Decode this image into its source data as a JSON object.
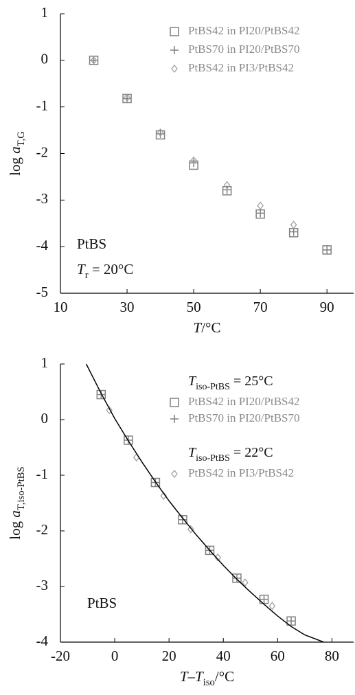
{
  "chart_data": [
    {
      "type": "scatter",
      "xlim": [
        10,
        98
      ],
      "xticks": [
        10,
        30,
        50,
        70,
        90
      ],
      "ylim": [
        -5,
        1
      ],
      "yticks": [
        1,
        0,
        -1,
        -2,
        -3,
        -4,
        -5
      ],
      "xlabel": [
        {
          "text": "T",
          "style": "italic"
        },
        {
          "text": "/°C",
          "style": "normal"
        }
      ],
      "ylabel": [
        {
          "text": "log ",
          "style": "normal"
        },
        {
          "text": "a",
          "style": "italic"
        },
        {
          "text": "T,G",
          "style": "sub"
        }
      ],
      "annotations": [
        [
          {
            "text": "PtBS",
            "style": "normal"
          }
        ],
        [
          {
            "text": "T",
            "style": "italic"
          },
          {
            "text": "r",
            "style": "sub"
          },
          {
            "text": " = 20°C",
            "style": "normal"
          }
        ]
      ],
      "series": [
        {
          "name": "PtBS42 in PI20/PtBS42",
          "marker": "square",
          "color": "#808080",
          "x": [
            20,
            30,
            40,
            50,
            60,
            70,
            80,
            90
          ],
          "values": [
            0,
            -0.82,
            -1.6,
            -2.25,
            -2.8,
            -3.3,
            -3.7,
            -4.07
          ]
        },
        {
          "name": "PtBS70 in PI20/PtBS70",
          "marker": "plus",
          "color": "#808080",
          "x": [
            20,
            30,
            40,
            50,
            60,
            70,
            80,
            90
          ],
          "values": [
            0,
            -0.82,
            -1.58,
            -2.2,
            -2.78,
            -3.28,
            -3.68,
            -4.07
          ]
        },
        {
          "name": "PtBS42 in PI3/PtBS42",
          "marker": "diamond",
          "color": "#a0a0a0",
          "x": [
            20,
            30,
            40,
            50,
            60,
            70,
            80
          ],
          "values": [
            0,
            -0.8,
            -1.55,
            -2.15,
            -2.68,
            -3.12,
            -3.53
          ]
        }
      ]
    },
    {
      "type": "scatter",
      "xlim": [
        -20,
        88
      ],
      "xticks": [
        -20,
        0,
        20,
        40,
        60,
        80
      ],
      "ylim": [
        -4,
        1
      ],
      "yticks": [
        1,
        0,
        -1,
        -2,
        -3,
        -4
      ],
      "xlabel": [
        {
          "text": "T",
          "style": "italic"
        },
        {
          "text": "–",
          "style": "normal"
        },
        {
          "text": "T",
          "style": "italic"
        },
        {
          "text": "iso",
          "style": "sub"
        },
        {
          "text": "/°C",
          "style": "normal"
        }
      ],
      "ylabel": [
        {
          "text": "log ",
          "style": "normal"
        },
        {
          "text": "a",
          "style": "italic"
        },
        {
          "text": "T,iso-PtBS",
          "style": "sub"
        }
      ],
      "annotations": [
        [
          {
            "text": "PtBS",
            "style": "normal"
          }
        ]
      ],
      "series": [
        {
          "name": "PtBS42 in PI20/PtBS42",
          "marker": "square",
          "color": "#808080",
          "legend_heading": [
            {
              "text": "T",
              "style": "italic"
            },
            {
              "text": "iso-PtBS",
              "style": "sub"
            },
            {
              "text": " = 25°C",
              "style": "normal"
            }
          ],
          "x": [
            -5,
            5,
            15,
            25,
            35,
            45,
            55,
            65
          ],
          "values": [
            0.45,
            -0.37,
            -1.13,
            -1.8,
            -2.35,
            -2.85,
            -3.23,
            -3.62
          ]
        },
        {
          "name": "PtBS70 in PI20/PtBS70",
          "marker": "plus",
          "color": "#808080",
          "x": [
            -5,
            5,
            15,
            25,
            35,
            45,
            55,
            65
          ],
          "values": [
            0.45,
            -0.37,
            -1.13,
            -1.8,
            -2.35,
            -2.85,
            -3.23,
            -3.62
          ]
        },
        {
          "name": "PtBS42 in PI3/PtBS42",
          "marker": "diamond",
          "color": "#a0a0a0",
          "legend_heading": [
            {
              "text": "T",
              "style": "italic"
            },
            {
              "text": "iso-PtBS",
              "style": "sub"
            },
            {
              "text": " = 22°C",
              "style": "normal"
            }
          ],
          "x": [
            -2,
            8,
            18,
            28,
            38,
            48,
            58
          ],
          "values": [
            0.17,
            -0.68,
            -1.37,
            -1.97,
            -2.48,
            -2.93,
            -3.35
          ]
        },
        {
          "marker": "line",
          "color": "#000000",
          "x": [
            -10.5,
            -5,
            0,
            5,
            10,
            15,
            20,
            25,
            30,
            35,
            40,
            45,
            50,
            55,
            60,
            65,
            70,
            77
          ],
          "values": [
            1.0,
            0.47,
            0.02,
            -0.38,
            -0.76,
            -1.12,
            -1.46,
            -1.77,
            -2.07,
            -2.35,
            -2.62,
            -2.87,
            -3.1,
            -3.32,
            -3.53,
            -3.72,
            -3.87,
            -4.0
          ]
        }
      ]
    }
  ]
}
